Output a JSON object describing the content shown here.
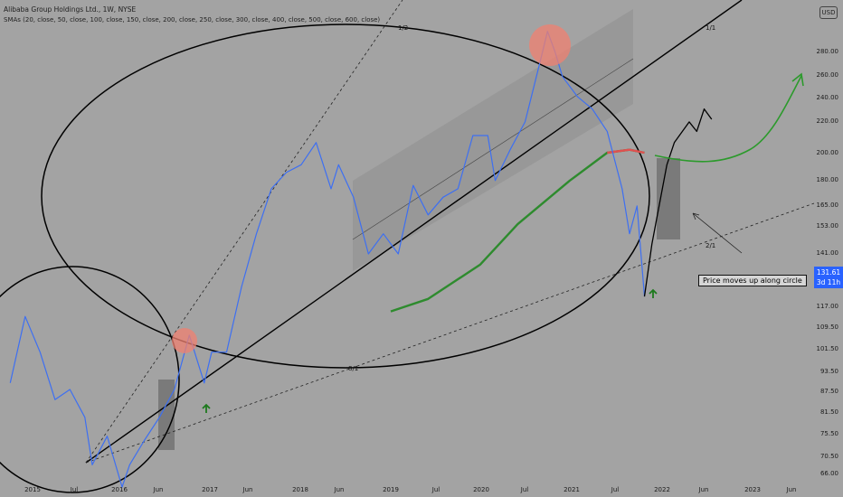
{
  "header": {
    "title": "Alibaba Group Holdings Ltd., 1W, NYSE",
    "indicator": "SMAs (20, close, 50, close, 100, close, 150, close, 200, close, 250, close, 300, close, 400, close, 500, close, 600, close)",
    "currency_badge": "USD"
  },
  "price_tag": {
    "price": "131.61",
    "countdown": "3d 11h"
  },
  "annotation": {
    "note": "Price moves up along circle"
  },
  "colors": {
    "background": "#a3a3a3",
    "price_line": "#3d6ff2",
    "sma_line": "#2e8b2e",
    "sma_red_segment": "#e05050",
    "highlight_circle": "#f08070",
    "up_arrow": "#1e7a1e",
    "projection": "#000000"
  },
  "chart_data": {
    "type": "line",
    "title": "Alibaba Group Holdings Ltd., 1W, NYSE",
    "scale": "log",
    "grid": false,
    "x_tick_labels": [
      "2015",
      "Jul",
      "2016",
      "Jun",
      "2017",
      "Jun",
      "2018",
      "Jun",
      "2019",
      "Jul",
      "2020",
      "Jul",
      "2021",
      "Jul",
      "2022",
      "Jun",
      "2023",
      "Jun"
    ],
    "y_tick_labels": [
      "280.00",
      "260.00",
      "240.00",
      "220.00",
      "200.00",
      "180.00",
      "165.00",
      "153.00",
      "141.00",
      "129.00",
      "117.00",
      "109.50",
      "101.50",
      "93.50",
      "87.50",
      "81.50",
      "75.50",
      "70.50",
      "66.00"
    ],
    "ylim": [
      64,
      305
    ],
    "series": [
      {
        "role": "weekly close price",
        "x": [
          "2014-10",
          "2014-12",
          "2015-02",
          "2015-04",
          "2015-06",
          "2015-08",
          "2015-09",
          "2015-11",
          "2016-01",
          "2016-02",
          "2016-04",
          "2016-06",
          "2016-08",
          "2016-10",
          "2016-12",
          "2017-01",
          "2017-03",
          "2017-05",
          "2017-07",
          "2017-09",
          "2017-11",
          "2018-01",
          "2018-03",
          "2018-05",
          "2018-06",
          "2018-08",
          "2018-10",
          "2018-12",
          "2019-02",
          "2019-04",
          "2019-06",
          "2019-08",
          "2019-10",
          "2019-12",
          "2020-02",
          "2020-03",
          "2020-05",
          "2020-07",
          "2020-09",
          "2020-10",
          "2020-11",
          "2020-12",
          "2021-02",
          "2021-04",
          "2021-06",
          "2021-08",
          "2021-09",
          "2021-10",
          "2021-11"
        ],
        "values": [
          90,
          113,
          100,
          85,
          88,
          80,
          68,
          75,
          63,
          68,
          74,
          80,
          88,
          106,
          90,
          100,
          100,
          125,
          150,
          175,
          185,
          190,
          205,
          175,
          190,
          170,
          140,
          150,
          140,
          177,
          160,
          170,
          175,
          210,
          210,
          180,
          200,
          220,
          270,
          300,
          280,
          257,
          240,
          230,
          213,
          175,
          150,
          165,
          121
        ]
      },
      {
        "role": "long SMA",
        "x": [
          "2019-01",
          "2019-06",
          "2020-01",
          "2020-06",
          "2021-01",
          "2021-06",
          "2021-09",
          "2021-11"
        ],
        "values": [
          115,
          120,
          135,
          155,
          180,
          198,
          200,
          198
        ]
      },
      {
        "role": "projected price path",
        "x": [
          "2021-11",
          "2021-12",
          "2022-02",
          "2022-03",
          "2022-05",
          "2022-06",
          "2022-07",
          "2022-08"
        ],
        "values": [
          121,
          145,
          190,
          205,
          220,
          213,
          230,
          222
        ]
      }
    ],
    "annotations": [
      {
        "label": "1/2"
      },
      {
        "label": "1/1"
      },
      {
        "label": "2/1"
      },
      {
        "label": "8/1"
      }
    ]
  }
}
